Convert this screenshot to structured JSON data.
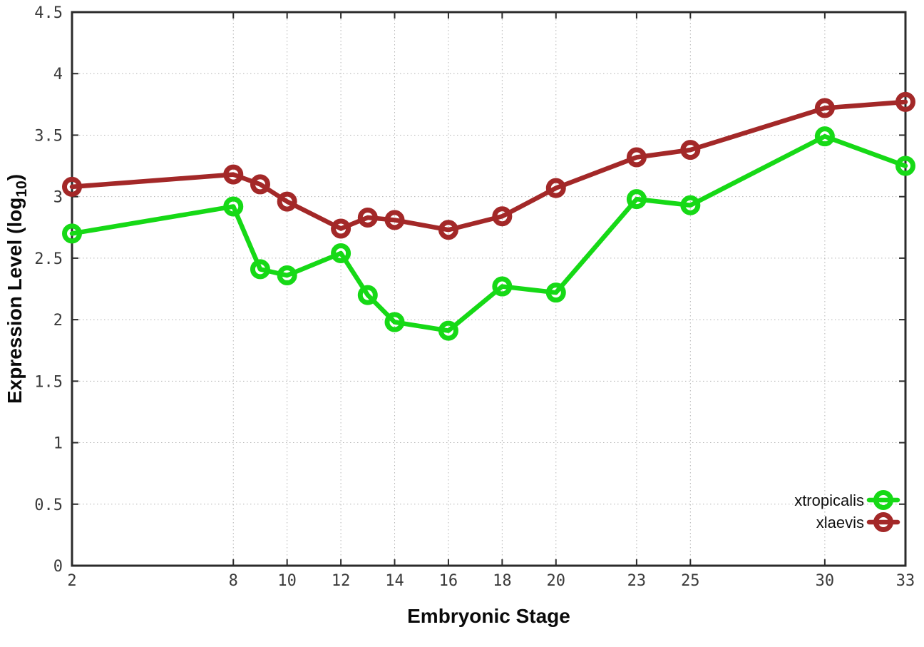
{
  "chart_data": {
    "type": "line",
    "title": "",
    "xlabel": "Embryonic Stage",
    "ylabel": {
      "main": "Expression Level (log",
      "sub": "10",
      "close": ")"
    },
    "xlim": [
      2,
      33
    ],
    "ylim": [
      0,
      4.5
    ],
    "grid": true,
    "legend_position": "inside bottom-right",
    "x": [
      2,
      8,
      9,
      10,
      12,
      13,
      14,
      16,
      18,
      20,
      23,
      25,
      30,
      33
    ],
    "xtick_values": [
      2,
      8,
      10,
      12,
      14,
      16,
      18,
      20,
      23,
      25,
      30,
      33
    ],
    "xtick_labels": [
      "2",
      "8",
      "10",
      "12",
      "14",
      "16",
      "18",
      "20",
      "23",
      "25",
      "30",
      "33"
    ],
    "ytick_values": [
      0,
      0.5,
      1,
      1.5,
      2,
      2.5,
      3,
      3.5,
      4,
      4.5
    ],
    "ytick_labels": [
      "0",
      "0.5",
      "1",
      "1.5",
      "2",
      "2.5",
      "3",
      "3.5",
      "4",
      "4.5"
    ],
    "series": [
      {
        "name": "xtropicalis",
        "color": "#16d916",
        "values": [
          2.7,
          2.92,
          2.41,
          2.36,
          2.54,
          2.2,
          1.98,
          1.91,
          2.27,
          2.22,
          2.98,
          2.93,
          3.49,
          3.25
        ]
      },
      {
        "name": "xlaevis",
        "color": "#a32828",
        "values": [
          3.08,
          3.18,
          3.1,
          2.96,
          2.74,
          2.83,
          2.81,
          2.73,
          2.84,
          3.07,
          3.32,
          3.38,
          3.72,
          3.77
        ]
      }
    ],
    "style": {
      "background": "#ffffff",
      "axis_color": "#2b2b2b",
      "grid_color": "#b4b4b4",
      "tick_label_color": "#3a3a3a",
      "marker": "open-circle",
      "line_width": 6.5,
      "marker_radius": 10.5
    }
  }
}
